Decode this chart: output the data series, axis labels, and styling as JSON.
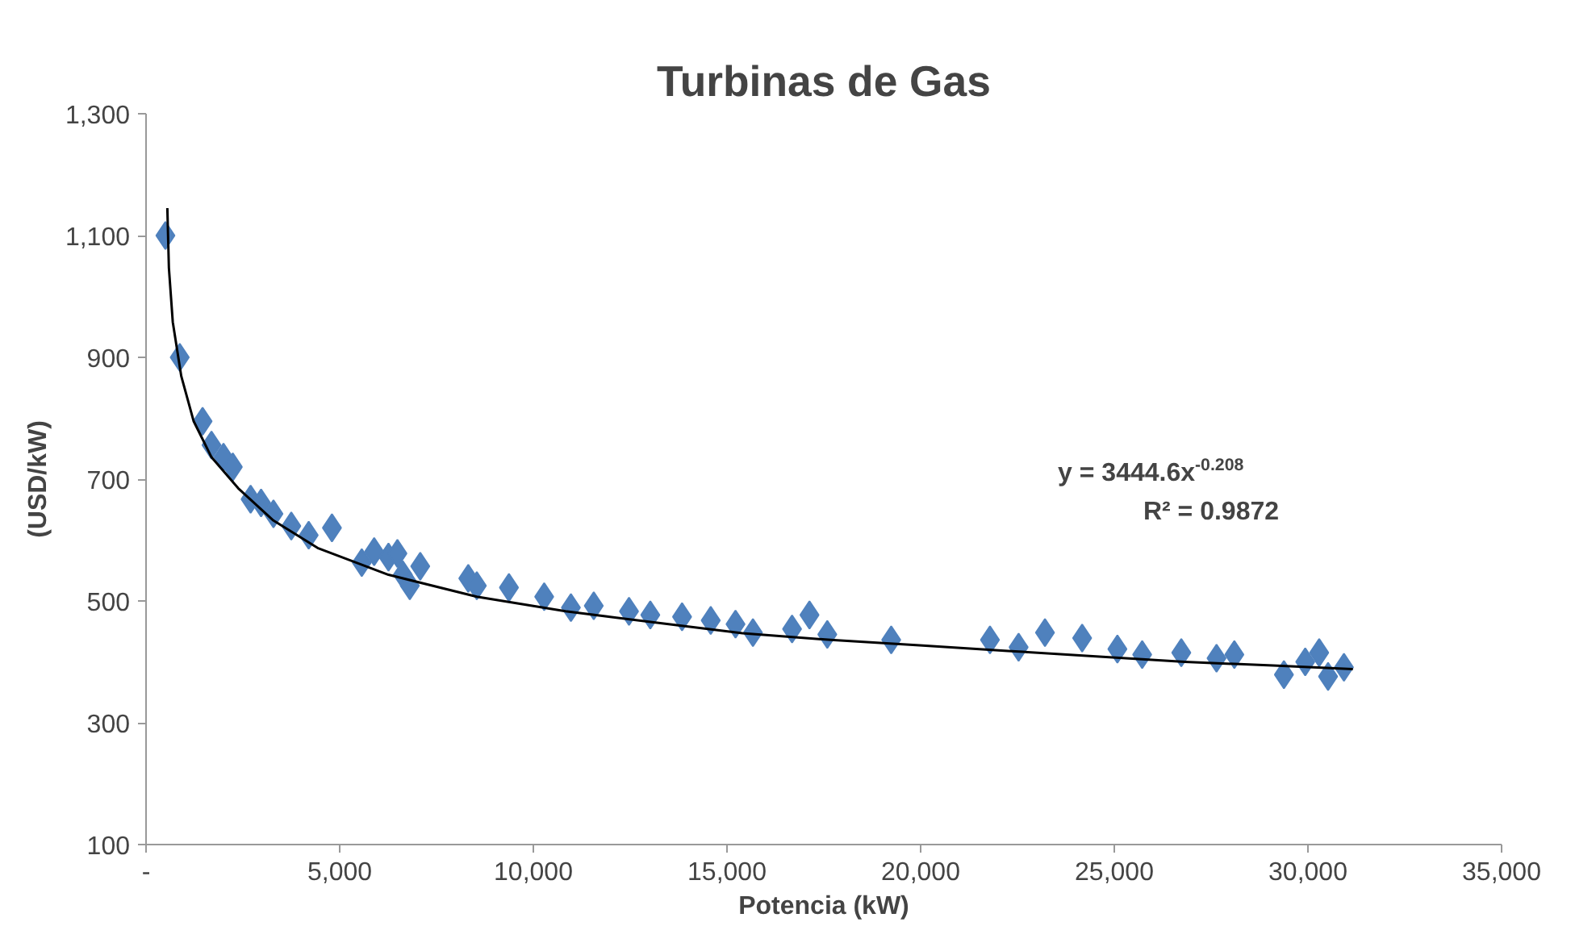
{
  "chart_data": {
    "type": "scatter",
    "title": "Turbinas de Gas",
    "xlabel": "Potencia (kW)",
    "ylabel": "(USD/kW)",
    "grid": false,
    "xlim": [
      0,
      35000
    ],
    "xticks": [
      {
        "value": 0,
        "label": "-"
      },
      {
        "value": 5000,
        "label": "5,000"
      },
      {
        "value": 10000,
        "label": "10,000"
      },
      {
        "value": 15000,
        "label": "15,000"
      },
      {
        "value": 20000,
        "label": "20,000"
      },
      {
        "value": 25000,
        "label": "25,000"
      },
      {
        "value": 30000,
        "label": "30,000"
      },
      {
        "value": 35000,
        "label": "35,000"
      }
    ],
    "ylim": [
      100,
      1300
    ],
    "yticks": [
      100,
      300,
      500,
      700,
      900,
      {
        "value": 1100,
        "label": "1,100"
      },
      {
        "value": 1300,
        "label": "1,300"
      }
    ],
    "annotations": [
      "y = 3444.6x$^{-0.208}$",
      "R² = 0.9872"
    ],
    "series": [
      {
        "marker": "diamond",
        "color": "#4f81bd",
        "x": [
          500,
          870,
          1460,
          1690,
          2000,
          2240,
          2700,
          2970,
          3290,
          3750,
          4200,
          4800,
          5570,
          5890,
          6260,
          6490,
          6630,
          6810,
          7080,
          8320,
          8540,
          9370,
          10280,
          10970,
          11560,
          12470,
          13020,
          13840,
          14580,
          15220,
          15670,
          16680,
          17130,
          17590,
          19240,
          21790,
          22530,
          23210,
          24170,
          25080,
          25720,
          26730,
          27640,
          28100,
          29380,
          29930,
          30290,
          30520,
          30930
        ],
        "values": [
          1100,
          900,
          795,
          756,
          736,
          720,
          667,
          661,
          643,
          623,
          608,
          620,
          563,
          581,
          572,
          578,
          543,
          525,
          557,
          537,
          525,
          522,
          507,
          489,
          492,
          483,
          477,
          474,
          468,
          462,
          448,
          454,
          477,
          445,
          436,
          436,
          424,
          448,
          439,
          421,
          412,
          415,
          406,
          412,
          379,
          400,
          415,
          376,
          391
        ]
      },
      {
        "type": "line",
        "color": "#000000",
        "x": [
          550,
          590,
          690,
          910,
          1230,
          1690,
          2380,
          3290,
          4430,
          6260,
          8540,
          10830,
          13110,
          15400,
          17680,
          19970,
          22250,
          24530,
          26820,
          29100,
          31160
        ],
        "values": [
          1145,
          1047,
          958,
          869,
          795,
          736,
          685,
          632,
          587,
          543,
          507,
          483,
          465,
          447,
          436,
          427,
          418,
          409,
          400,
          394,
          388
        ]
      }
    ]
  }
}
